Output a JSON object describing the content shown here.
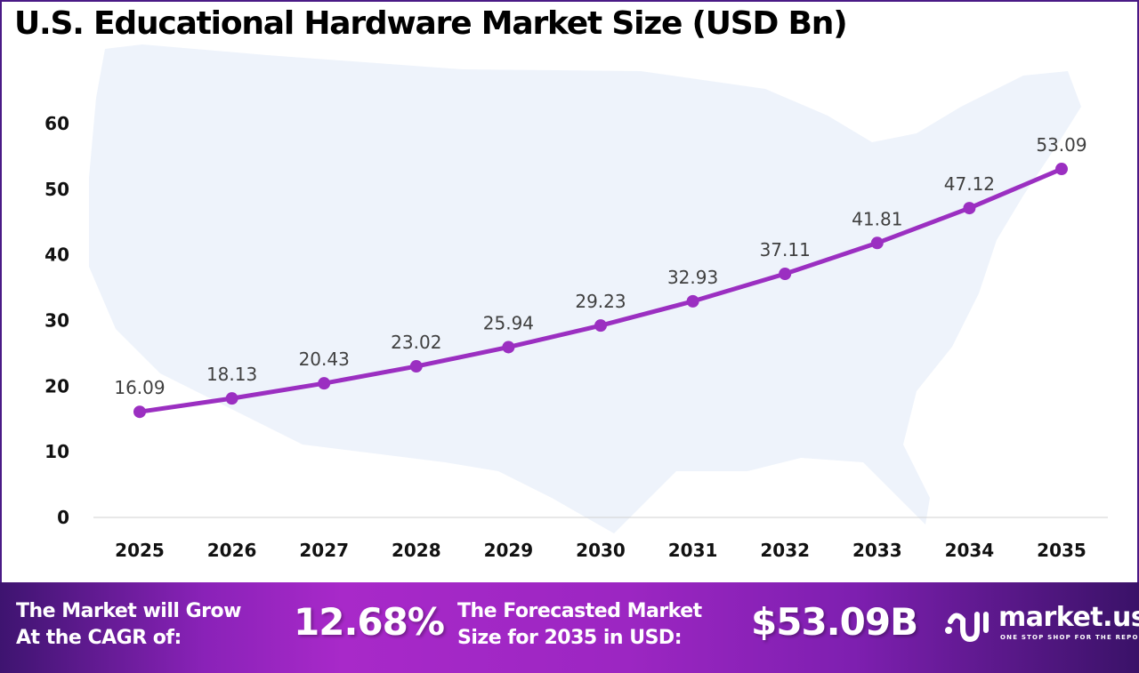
{
  "chart_data": {
    "type": "line",
    "title": "U.S. Educational Hardware Market Size (USD Bn)",
    "categories": [
      "2025",
      "2026",
      "2027",
      "2028",
      "2029",
      "2030",
      "2031",
      "2032",
      "2033",
      "2034",
      "2035"
    ],
    "values": [
      16.09,
      18.13,
      20.43,
      23.02,
      25.94,
      29.23,
      32.93,
      37.11,
      41.81,
      47.12,
      53.09
    ],
    "data_labels": [
      "16.09",
      "18.13",
      "20.43",
      "23.02",
      "25.94",
      "29.23",
      "32.93",
      "37.11",
      "41.81",
      "47.12",
      "53.09"
    ],
    "ylim": [
      0,
      60
    ],
    "yticks": [
      "0",
      "10",
      "20",
      "30",
      "40",
      "50",
      "60"
    ],
    "grid": false,
    "line_color": "#9b2fc1",
    "background_shape": "United States map silhouette"
  },
  "footer": {
    "cagr_label": [
      "The Market will Grow",
      "At the CAGR of:"
    ],
    "cagr_value": "12.68%",
    "forecast_label": [
      "The Forecasted Market",
      "Size for 2035 in USD:"
    ],
    "forecast_value": "$53.09B",
    "brand": "market.us",
    "tagline": "ONE STOP SHOP FOR THE REPORTS"
  }
}
